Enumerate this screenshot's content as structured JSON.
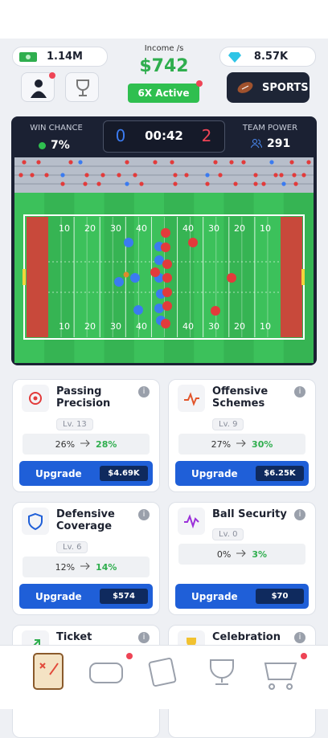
{
  "header": {
    "cash": "1.14M",
    "income_label": "Income /s",
    "income": "$742",
    "boost": "6X Active",
    "gems": "8.57K",
    "sports_button": "SPORTS"
  },
  "match": {
    "win_chance_label": "WIN CHANCE",
    "win_chance": "7%",
    "score_home": "0",
    "clock": "00:42",
    "score_away": "2",
    "team_power_label": "TEAM POWER",
    "team_power": "291",
    "yard_numbers": [
      "10",
      "20",
      "30",
      "40",
      "40",
      "30",
      "20",
      "10"
    ]
  },
  "upgrades": [
    {
      "title": "Passing Precision",
      "level": "Lv. 13",
      "current": "26%",
      "next": "28%",
      "button": "Upgrade",
      "price": "$4.69K"
    },
    {
      "title": "Offensive Schemes",
      "level": "Lv. 9",
      "current": "27%",
      "next": "30%",
      "button": "Upgrade",
      "price": "$6.25K"
    },
    {
      "title": "Defensive Coverage",
      "level": "Lv. 6",
      "current": "12%",
      "next": "14%",
      "button": "Upgrade",
      "price": "$574"
    },
    {
      "title": "Ball Security",
      "level": "Lv. 0",
      "current": "0%",
      "next": "3%",
      "button": "Upgrade",
      "price": "$70"
    },
    {
      "title": "Ticket"
    },
    {
      "title": "Celebration"
    }
  ]
}
